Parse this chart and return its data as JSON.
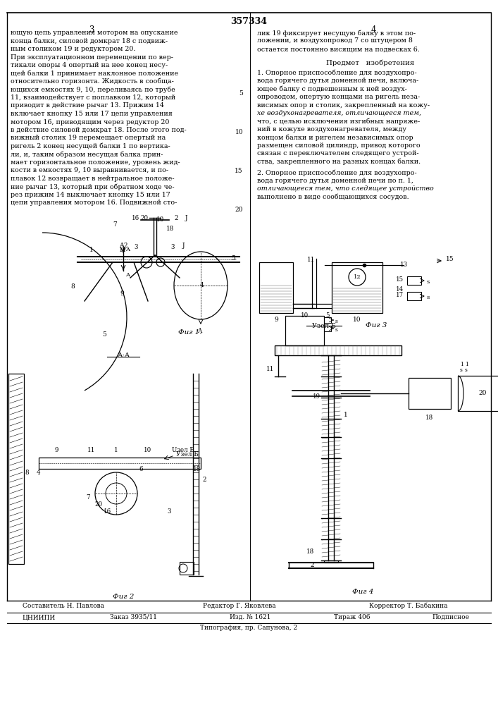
{
  "patent_number": "357334",
  "page_col_left": "3",
  "page_col_right": "4",
  "left_text_lines": [
    "ющую цепь управления мотором на опускание",
    "конца балки, силовой домкрат 18 с подвиж-",
    "ным столиком 19 и редуктором 20.",
    "При эксплуатационном перемещении по вер-",
    "тикали опоры 4 опертый на нее конец несу-",
    "щей балки 1 принимает наклонное положение",
    "относительно горизонта. Жидкость в сообща-",
    "ющихся емкостях 9, 10, переливаясь по трубе",
    "11, взаимодействует с поплавком 12, который",
    "приводит в действие рычаг 13. Прижим 14",
    "включает кнопку 15 или 17 цепи управления",
    "мотором 16, приводящим через редуктор 20",
    "в действие силовой домкрат 18. После этого под-",
    "вижный столик 19 перемещает опертый на",
    "ригель 2 конец несущей балки 1 по вертика-",
    "ли, и, таким образом несущая балка прин-",
    "мает горизонтальное положение, уровень жид-",
    "кости в емкостях 9, 10 выравнивается, и по-",
    "плавок 12 возвращает в нейтральное положе-",
    "ние рычаг 13, который при обратном ходе че-",
    "рез прижим 14 выключает кнопку 15 или 17",
    "цепи управления мотором 16. Подвижной сто-"
  ],
  "right_text_top": [
    "лик 19 фиксирует несущую балку в этом по-",
    "ложении, и воздухопровод 7 со штуцером 8",
    "остается постоянно висящим на подвесках 6."
  ],
  "heading_predmet": "Предмет   изобретения",
  "right_text_claim1": [
    "1. Опорное приспособление для воздухопро-",
    "вода горячего дутья доменной печи, включа-",
    "ющее балку с подвешенным к ней воздух-",
    "опроводом, опертую концами на ригель неза-",
    "висимых опор и столик, закрепленный на кожу-",
    "хе воздухонагревателя, отличающееся тем,",
    "что, с целью исключения изгибных напряже-",
    "ний в кожухе воздухонагревателя, между",
    "концом балки и ригелем независимых опор",
    "размещен силовой цилиндр, привод которого",
    "связан с переключателем следящего устрой-",
    "ства, закрепленного на разных концах балки."
  ],
  "right_text_claim2": [
    "2. Опорное приспособление для воздухопро-",
    "вода горячего дутья доменной печи по п. 1,",
    "отличающееся тем, что следящее устройство",
    "выполнено в виде сообщающихся сосудов."
  ],
  "italic_words": [
    "отличающееся",
    "отличающееся"
  ],
  "line_numbers_left": [
    "5",
    "10",
    "15",
    "20"
  ],
  "fig_labels": [
    "Фиг 1.",
    "Фиг 2",
    "Фиг 3",
    "Фиг 4"
  ],
  "bg_color": "#ffffff",
  "text_color": "#000000",
  "font_size_body": 6.8,
  "staff_row": [
    "Составитель Н. Павлова",
    "Редактор Г. Яковлева",
    "Корректор Т. Бабакина"
  ],
  "footer_row1": [
    "ЦНИИПИ",
    "Заказ 3935/11",
    "Изд. № 1621",
    "Тираж 406",
    "Подписное"
  ],
  "footer_row2": "Типография, пр. Сапунова, 2"
}
